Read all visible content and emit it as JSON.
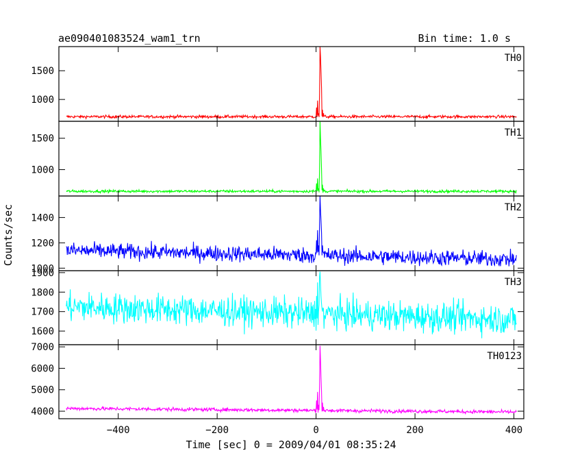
{
  "header": {
    "left_title": "ae090401083524_wam1_trn",
    "right_title": "Bin time: 1.0 s"
  },
  "chart_data": {
    "type": "line",
    "xlabel": "Time [sec] 0 = 2009/04/01 08:35:24",
    "ylabel": "Counts/sec",
    "xlim": [
      -520,
      420
    ],
    "x_ticks": [
      -400,
      -200,
      0,
      200,
      400
    ],
    "x_tick_labels": [
      "−400",
      "−200",
      "0",
      "200",
      "400"
    ],
    "x_range_data": [
      -505,
      405
    ],
    "spike_center": 8,
    "panels": [
      {
        "name": "TH0",
        "color": "#ff0000",
        "ylim": [
          620,
          1920
        ],
        "ticks": [
          1000,
          1500
        ],
        "tick_labels": [
          "1000",
          "1500"
        ],
        "baseline": 700,
        "noise": 18,
        "trend": 0,
        "spike": [
          {
            "x": 0,
            "y": 860
          },
          {
            "x": 2,
            "y": 980
          },
          {
            "x": 4,
            "y": 760
          },
          {
            "x": 6,
            "y": 1100
          },
          {
            "x": 7,
            "y": 1920
          },
          {
            "x": 8,
            "y": 1750
          },
          {
            "x": 9,
            "y": 1500
          },
          {
            "x": 10,
            "y": 1200
          },
          {
            "x": 12,
            "y": 820
          },
          {
            "x": 14,
            "y": 760
          }
        ]
      },
      {
        "name": "TH1",
        "color": "#00ff00",
        "ylim": [
          580,
          1770
        ],
        "ticks": [
          1000,
          1500
        ],
        "tick_labels": [
          "1000",
          "1500"
        ],
        "baseline": 655,
        "noise": 15,
        "trend": 0,
        "spike": [
          {
            "x": 0,
            "y": 780
          },
          {
            "x": 2,
            "y": 860
          },
          {
            "x": 4,
            "y": 700
          },
          {
            "x": 6,
            "y": 1000
          },
          {
            "x": 7,
            "y": 1770
          },
          {
            "x": 8,
            "y": 1500
          },
          {
            "x": 9,
            "y": 1300
          },
          {
            "x": 10,
            "y": 1000
          },
          {
            "x": 12,
            "y": 760
          },
          {
            "x": 14,
            "y": 700
          }
        ]
      },
      {
        "name": "TH2",
        "color": "#0000ff",
        "ylim": [
          980,
          1570
        ],
        "ticks": [
          1000,
          1200,
          1400
        ],
        "tick_labels": [
          "1000",
          "1200",
          "1400"
        ],
        "baseline": 1140,
        "noise": 45,
        "trend": -70,
        "spike": [
          {
            "x": 0,
            "y": 1220
          },
          {
            "x": 2,
            "y": 1300
          },
          {
            "x": 4,
            "y": 1180
          },
          {
            "x": 6,
            "y": 1350
          },
          {
            "x": 7,
            "y": 1570
          },
          {
            "x": 8,
            "y": 1460
          },
          {
            "x": 9,
            "y": 1380
          },
          {
            "x": 10,
            "y": 1280
          },
          {
            "x": 12,
            "y": 1180
          },
          {
            "x": 14,
            "y": 1120
          }
        ]
      },
      {
        "name": "TH3",
        "color": "#00ffff",
        "ylim": [
          1530,
          1910
        ],
        "ticks": [
          1600,
          1700,
          1800,
          1900
        ],
        "tick_labels": [
          "1600",
          "1700",
          "1800",
          "1900"
        ],
        "baseline": 1725,
        "noise": 55,
        "trend": -65,
        "spike": [
          {
            "x": 0,
            "y": 1780
          },
          {
            "x": 2,
            "y": 1850
          },
          {
            "x": 4,
            "y": 1700
          },
          {
            "x": 6,
            "y": 1880
          },
          {
            "x": 7,
            "y": 1905
          },
          {
            "x": 8,
            "y": 1840
          },
          {
            "x": 9,
            "y": 1780
          },
          {
            "x": 10,
            "y": 1740
          },
          {
            "x": 12,
            "y": 1700
          }
        ]
      },
      {
        "name": "TH0123",
        "color": "#ff00ff",
        "ylim": [
          3650,
          7100
        ],
        "ticks": [
          4000,
          5000,
          6000,
          7000
        ],
        "tick_labels": [
          "4000",
          "5000",
          "6000",
          "7000"
        ],
        "baseline": 4130,
        "noise": 60,
        "trend": -170,
        "spike": [
          {
            "x": 0,
            "y": 4500
          },
          {
            "x": 2,
            "y": 4900
          },
          {
            "x": 4,
            "y": 4300
          },
          {
            "x": 6,
            "y": 5200
          },
          {
            "x": 7,
            "y": 7050
          },
          {
            "x": 8,
            "y": 6400
          },
          {
            "x": 9,
            "y": 5600
          },
          {
            "x": 10,
            "y": 4900
          },
          {
            "x": 12,
            "y": 4400
          },
          {
            "x": 14,
            "y": 4200
          }
        ]
      }
    ]
  }
}
